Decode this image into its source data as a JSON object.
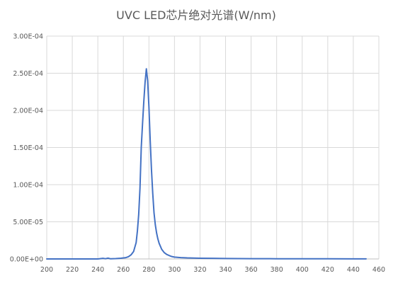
{
  "chart_data": {
    "type": "line",
    "title": "UVC LED芯片绝对光谱(W/nm)",
    "xlabel": "",
    "ylabel": "",
    "xlim": [
      200,
      460
    ],
    "ylim": [
      0,
      0.0003
    ],
    "x_ticks": [
      200,
      220,
      240,
      260,
      280,
      300,
      320,
      340,
      360,
      380,
      400,
      420,
      440,
      460
    ],
    "x_tick_labels": [
      "200",
      "220",
      "240",
      "260",
      "280",
      "300",
      "320",
      "340",
      "360",
      "380",
      "400",
      "420",
      "440",
      "460"
    ],
    "y_ticks": [
      0,
      5e-05,
      0.0001,
      0.00015,
      0.0002,
      0.00025,
      0.0003
    ],
    "y_tick_labels": [
      "0.00E+00",
      "5.00E-05",
      "1.00E-04",
      "1.50E-04",
      "2.00E-04",
      "2.50E-04",
      "3.00E-04"
    ],
    "grid": true,
    "legend": "none",
    "series_color": "#4472c4",
    "series": [
      {
        "x": [
          200,
          240,
          244,
          246,
          248,
          250,
          254,
          258,
          262,
          264,
          266,
          268,
          270,
          271,
          272,
          273,
          274,
          275,
          276,
          277,
          278,
          279,
          280,
          281,
          282,
          283,
          284,
          285,
          286,
          287,
          288,
          290,
          292,
          294,
          296,
          298,
          300,
          305,
          310,
          320,
          330,
          340,
          360,
          380,
          400,
          420,
          440,
          450
        ],
        "y": [
          0,
          0,
          8e-07,
          3e-07,
          1.1e-06,
          2e-07,
          5e-07,
          1e-06,
          1.8e-06,
          3e-06,
          5.5e-06,
          1e-05,
          2.2e-05,
          3.8e-05,
          6e-05,
          9.5e-05,
          0.00015,
          0.000182,
          0.000212,
          0.000238,
          0.000256,
          0.00024,
          0.000205,
          0.00016,
          0.00012,
          8.8e-05,
          6.2e-05,
          4.6e-05,
          3.5e-05,
          2.7e-05,
          2.1e-05,
          1.3e-05,
          8.5e-06,
          6e-06,
          4.5e-06,
          3.2e-06,
          2.5e-06,
          1.8e-06,
          1.4e-06,
          1e-06,
          8e-07,
          6e-07,
          4e-07,
          3e-07,
          2e-07,
          2e-07,
          1e-07,
          1e-07
        ]
      }
    ]
  }
}
